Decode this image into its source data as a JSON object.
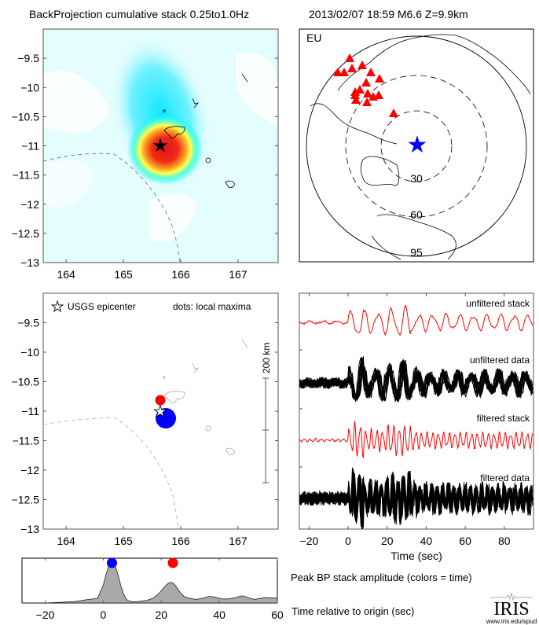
{
  "header": {
    "left_title": "BackProjection cumulative stack 0.25to1.0Hz",
    "right_title": "2013/02/07 18:59  M6.6  Z=9.9km"
  },
  "colors": {
    "epicenter_star_map": "#0000ff",
    "station_triangle": "#ff0000",
    "early_maximum": "#0000ff",
    "late_maximum": "#ff0000",
    "stack_trace": "#ff0000",
    "data_trace": "#000000",
    "amplitude_fill": "#a9a9a9"
  },
  "chart_data": [
    {
      "id": "bp-heatmap",
      "type": "heatmap",
      "title": "BackProjection cumulative stack 0.25to1.0Hz",
      "xlabel": "",
      "ylabel": "",
      "xlim": [
        163.6,
        167.7
      ],
      "ylim": [
        -13.0,
        -9.0
      ],
      "xticks": [
        164,
        165,
        166,
        167
      ],
      "yticks": [
        -9.5,
        -10,
        -10.5,
        -11,
        -11.5,
        -12,
        -12.5,
        -13
      ],
      "peak": {
        "lon": 165.85,
        "lat": -11.1
      },
      "epicenter": {
        "lon": 165.65,
        "lat": -11.0,
        "symbol": "black star"
      },
      "colormap": "white-cyan-yellow-red"
    },
    {
      "id": "station-map",
      "type": "scatter",
      "title": "EU",
      "network_label": "EU",
      "distance_rings_deg": [
        "30",
        "60",
        "95"
      ],
      "epicenter_symbol": "blue star",
      "station_count": 17,
      "station_symbol": "red triangle"
    },
    {
      "id": "local-maxima",
      "type": "scatter",
      "xlim": [
        163.6,
        167.7
      ],
      "ylim": [
        -13.0,
        -9.0
      ],
      "xticks": [
        164,
        165,
        166,
        167
      ],
      "yticks": [
        -9.5,
        -10,
        -10.5,
        -11,
        -11.5,
        -12,
        -12.5,
        -13
      ],
      "legend": {
        "star_label": "USGS epicenter",
        "dots_label": "dots: local maxima",
        "placement": "top"
      },
      "epicenter": {
        "lon": 165.65,
        "lat": -11.0
      },
      "points": [
        {
          "lon": 165.78,
          "lat": -11.1,
          "color": "blue",
          "size": "large",
          "time_sec": 3
        },
        {
          "lon": 165.65,
          "lat": -10.8,
          "color": "red",
          "size": "small",
          "time_sec": 24
        }
      ],
      "scale_bar_label": "200 km"
    },
    {
      "id": "seismograms",
      "type": "line",
      "xlabel": "Time (sec)",
      "xlim": [
        -25,
        95
      ],
      "xticks": [
        -20,
        0,
        20,
        40,
        60,
        80
      ],
      "series": [
        {
          "name": "unfiltered stack",
          "color": "red"
        },
        {
          "name": "unfiltered data",
          "color": "black"
        },
        {
          "name": "filtered stack",
          "color": "red"
        },
        {
          "name": "filtered data",
          "color": "black"
        }
      ]
    },
    {
      "id": "peak-amplitude",
      "type": "area",
      "title": "Peak BP stack amplitude (colors = time)",
      "xlabel": "Time relative to origin (sec)",
      "xlim": [
        -28,
        60
      ],
      "ylim": [
        0,
        1
      ],
      "xticks": [
        -20,
        0,
        20,
        40,
        60
      ],
      "x": [
        -28,
        -20,
        -10,
        -5,
        -2,
        0,
        1,
        2,
        3,
        4,
        5,
        6,
        7,
        8,
        9,
        10,
        12,
        15,
        17,
        19,
        21,
        22,
        23,
        24,
        25,
        26,
        27,
        28,
        30,
        32,
        34,
        36,
        37,
        39,
        41,
        43,
        45,
        47,
        48,
        50,
        52,
        54,
        56,
        58,
        60
      ],
      "values": [
        0.0,
        0.0,
        0.03,
        0.08,
        0.1,
        0.4,
        0.65,
        0.85,
        0.92,
        0.85,
        0.65,
        0.4,
        0.2,
        0.08,
        0.04,
        0.03,
        0.03,
        0.06,
        0.1,
        0.2,
        0.35,
        0.42,
        0.46,
        0.45,
        0.38,
        0.28,
        0.2,
        0.14,
        0.1,
        0.08,
        0.1,
        0.14,
        0.15,
        0.12,
        0.09,
        0.09,
        0.11,
        0.15,
        0.16,
        0.12,
        0.08,
        0.1,
        0.12,
        0.11,
        0.11
      ],
      "markers": [
        {
          "time": 3,
          "color": "blue"
        },
        {
          "time": 24,
          "color": "red"
        }
      ]
    }
  ],
  "ticks": {
    "lat": [
      "-9.5",
      "-10",
      "-10.5",
      "-11",
      "-11.5",
      "-12",
      "-12.5",
      "-13"
    ],
    "lon": [
      "164",
      "165",
      "166",
      "167"
    ],
    "time": [
      "-20",
      "0",
      "20",
      "40",
      "60",
      "80"
    ],
    "amp_time": [
      "-20",
      "0",
      "20",
      "40",
      "60"
    ],
    "rings": [
      "30",
      "60",
      "95"
    ]
  },
  "labels": {
    "network": "EU",
    "legend_star": "USGS epicenter",
    "legend_dots": "dots: local maxima",
    "scale_bar": "200 km",
    "trace1": "unfiltered stack",
    "trace2": "unfiltered data",
    "trace3": "filtered stack",
    "trace4": "filtered data",
    "time_axis": "Time (sec)",
    "amp_title": "Peak BP stack amplitude (colors = time)",
    "amp_xlabel": "Time relative to origin (sec)"
  },
  "logo": {
    "name": "IRIS",
    "url_text": "www.iris.edu/spud"
  }
}
